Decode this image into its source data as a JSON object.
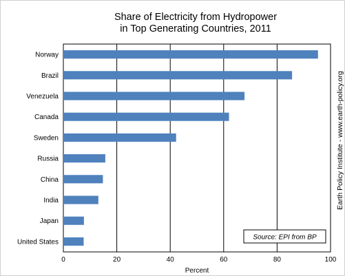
{
  "chart_data": {
    "type": "bar",
    "orientation": "horizontal",
    "title_lines": [
      "Share of Electricity from Hydropower",
      "in Top Generating Countries, 2011"
    ],
    "xlabel": "Percent",
    "ylabel": "",
    "categories": [
      "Norway",
      "Brazil",
      "Venezuela",
      "Canada",
      "Sweden",
      "Russia",
      "China",
      "India",
      "Japan",
      "United States"
    ],
    "values": [
      95.3,
      85.6,
      67.8,
      62.0,
      42.2,
      15.7,
      14.8,
      13.1,
      7.7,
      7.6
    ],
    "xlim": [
      0,
      100
    ],
    "xticks": [
      0,
      20,
      40,
      60,
      80,
      100
    ],
    "grid": "vertical",
    "legend": "none",
    "source_note": "Source: EPI from BP",
    "side_credit": "Earth Policy Institute - www.earth-policy.org",
    "bar_color": "#4f81bd"
  }
}
